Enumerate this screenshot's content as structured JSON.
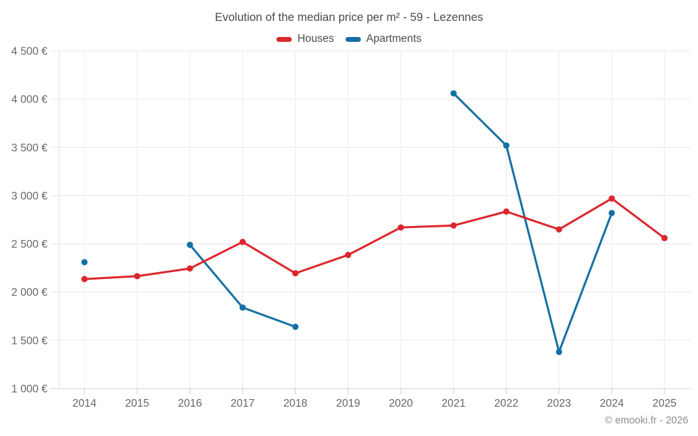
{
  "title": "Evolution of the median price per m² - 59 - Lezennes",
  "credit": "© emooki.fr - 2026",
  "chart_data": {
    "type": "line",
    "title": "Evolution of the median price per m² - 59 - Lezennes",
    "legend_position": "top",
    "grid": true,
    "ylim": [
      1000,
      4500
    ],
    "x_categories": [
      "2014",
      "2015",
      "2016",
      "2017",
      "2018",
      "2019",
      "2020",
      "2021",
      "2022",
      "2023",
      "2024",
      "2025"
    ],
    "y_ticks": [
      {
        "value": 4500,
        "label": "4 500 €"
      },
      {
        "value": 4000,
        "label": "4 000 €"
      },
      {
        "value": 3500,
        "label": "3 500 €"
      },
      {
        "value": 3000,
        "label": "3 000 €"
      },
      {
        "value": 2500,
        "label": "2 500 €"
      },
      {
        "value": 2000,
        "label": "2 000 €"
      },
      {
        "value": 1500,
        "label": "1 500 €"
      },
      {
        "value": 1000,
        "label": "1 000 €"
      }
    ],
    "series": [
      {
        "name": "Houses",
        "color": "#dc272c",
        "values": [
          2135,
          2165,
          2245,
          2520,
          2195,
          2385,
          2670,
          2690,
          2835,
          2650,
          2970,
          2560
        ]
      },
      {
        "name": "Apartments",
        "color": "#1470a4",
        "values": [
          2310,
          null,
          2490,
          1840,
          1640,
          null,
          null,
          4060,
          3520,
          1380,
          2820,
          null
        ]
      }
    ]
  }
}
